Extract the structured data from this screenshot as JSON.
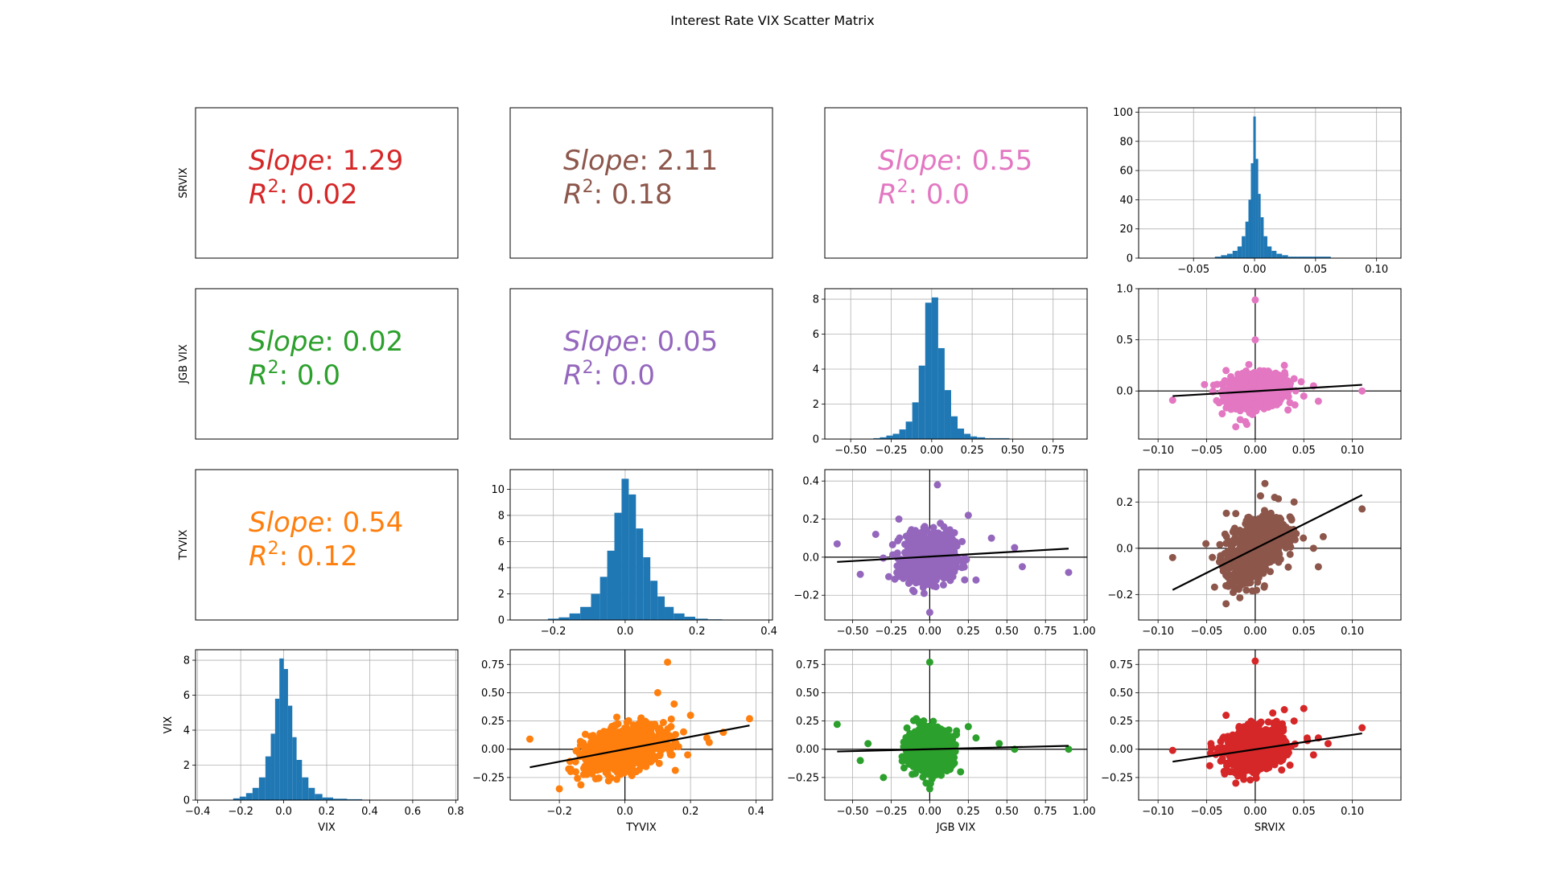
{
  "title": "Interest Rate VIX Scatter Matrix",
  "variables": [
    "VIX",
    "TYVIX",
    "JGB VIX",
    "SRVIX"
  ],
  "chart_data": [
    {
      "type": "table",
      "panel": "row0-col0",
      "slope_label": "Slope",
      "slope": "1.29",
      "r2_label": "R",
      "r2_sup": "2",
      "r2": "0.02",
      "color": "#d62728"
    },
    {
      "type": "table",
      "panel": "row0-col1",
      "slope_label": "Slope",
      "slope": "2.11",
      "r2_label": "R",
      "r2_sup": "2",
      "r2": "0.18",
      "color": "#8c564b"
    },
    {
      "type": "table",
      "panel": "row0-col2",
      "slope_label": "Slope",
      "slope": "0.55",
      "r2_label": "R",
      "r2_sup": "2",
      "r2": "0.0",
      "color": "#e377c2"
    },
    {
      "type": "table",
      "panel": "row1-col0",
      "slope_label": "Slope",
      "slope": "0.02",
      "r2_label": "R",
      "r2_sup": "2",
      "r2": "0.0",
      "color": "#2ca02c"
    },
    {
      "type": "table",
      "panel": "row1-col1",
      "slope_label": "Slope",
      "slope": "0.05",
      "r2_label": "R",
      "r2_sup": "2",
      "r2": "0.0",
      "color": "#9467bd"
    },
    {
      "type": "table",
      "panel": "row2-col0",
      "slope_label": "Slope",
      "slope": "0.54",
      "r2_label": "R",
      "r2_sup": "2",
      "r2": "0.12",
      "color": "#ff7f0e"
    },
    {
      "type": "bar",
      "panel": "row0-col3",
      "series_variable": "SRVIX",
      "color": "#1f77b4",
      "xlim": [
        -0.095,
        0.12
      ],
      "ylim": [
        0,
        103
      ],
      "xticks": [
        -0.05,
        0.0,
        0.05,
        0.1
      ],
      "xtick_labels": [
        "−0.05",
        "0.00",
        "0.05",
        "0.10"
      ],
      "yticks": [
        0,
        20,
        40,
        60,
        80,
        100
      ],
      "ytick_labels": [
        "0",
        "20",
        "40",
        "60",
        "80",
        "100"
      ],
      "bin_centers": [
        -0.03,
        -0.025,
        -0.02,
        -0.016,
        -0.012,
        -0.009,
        -0.006,
        -0.004,
        -0.002,
        0.0,
        0.002,
        0.004,
        0.006,
        0.009,
        0.012,
        0.016,
        0.02,
        0.025,
        0.03,
        0.04,
        0.055
      ],
      "values": [
        1,
        2,
        3,
        5,
        8,
        15,
        25,
        40,
        65,
        97,
        68,
        44,
        28,
        15,
        8,
        5,
        3,
        2,
        1,
        1,
        1
      ]
    },
    {
      "type": "bar",
      "panel": "row1-col2",
      "series_variable": "JGB VIX",
      "color": "#1f77b4",
      "xlim": [
        -0.66,
        0.96
      ],
      "ylim": [
        0,
        8.6
      ],
      "xticks": [
        -0.5,
        -0.25,
        0.0,
        0.25,
        0.5,
        0.75
      ],
      "xtick_labels": [
        "−0.50",
        "−0.25",
        "0.00",
        "0.25",
        "0.50",
        "0.75"
      ],
      "yticks": [
        0,
        2,
        4,
        6,
        8
      ],
      "ytick_labels": [
        "0",
        "2",
        "4",
        "6",
        "8"
      ],
      "bin_centers": [
        -0.34,
        -0.3,
        -0.26,
        -0.22,
        -0.18,
        -0.14,
        -0.1,
        -0.06,
        -0.02,
        0.02,
        0.06,
        0.1,
        0.14,
        0.18,
        0.22,
        0.26,
        0.3,
        0.36,
        0.44
      ],
      "values": [
        0.05,
        0.1,
        0.2,
        0.3,
        0.55,
        1.0,
        2.1,
        4.2,
        7.8,
        8.1,
        5.2,
        2.8,
        1.3,
        0.6,
        0.3,
        0.15,
        0.1,
        0.05,
        0.05
      ]
    },
    {
      "type": "bar",
      "panel": "row2-col1",
      "series_variable": "TYVIX",
      "color": "#1f77b4",
      "xlim": [
        -0.32,
        0.41
      ],
      "ylim": [
        0,
        11.5
      ],
      "xticks": [
        -0.2,
        0.0,
        0.2,
        0.4
      ],
      "xtick_labels": [
        "−0.2",
        "0.0",
        "0.2",
        "0.4"
      ],
      "yticks": [
        0,
        2,
        4,
        6,
        8,
        10
      ],
      "ytick_labels": [
        "0",
        "2",
        "4",
        "6",
        "8",
        "10"
      ],
      "bin_centers": [
        -0.2,
        -0.17,
        -0.14,
        -0.11,
        -0.08,
        -0.06,
        -0.04,
        -0.02,
        0.0,
        0.02,
        0.04,
        0.06,
        0.08,
        0.1,
        0.12,
        0.15,
        0.18,
        0.21,
        0.25
      ],
      "values": [
        0.1,
        0.2,
        0.5,
        1.0,
        2.0,
        3.3,
        5.3,
        8.2,
        10.8,
        9.6,
        7.0,
        4.8,
        3.0,
        1.8,
        1.0,
        0.5,
        0.25,
        0.1,
        0.05
      ]
    },
    {
      "type": "bar",
      "panel": "row3-col0",
      "series_variable": "VIX",
      "color": "#1f77b4",
      "xlim": [
        -0.41,
        0.81
      ],
      "ylim": [
        0,
        8.6
      ],
      "xticks": [
        -0.4,
        -0.2,
        0.0,
        0.2,
        0.4,
        0.6,
        0.8
      ],
      "xtick_labels": [
        "−0.4",
        "−0.2",
        "0.0",
        "0.2",
        "0.4",
        "0.6",
        "0.8"
      ],
      "yticks": [
        0,
        2,
        4,
        6,
        8
      ],
      "ytick_labels": [
        "0",
        "2",
        "4",
        "6",
        "8"
      ],
      "bin_centers": [
        -0.22,
        -0.19,
        -0.16,
        -0.13,
        -0.1,
        -0.07,
        -0.05,
        -0.03,
        -0.01,
        0.01,
        0.03,
        0.05,
        0.07,
        0.1,
        0.13,
        0.16,
        0.2,
        0.26,
        0.33
      ],
      "values": [
        0.1,
        0.2,
        0.4,
        0.7,
        1.3,
        2.5,
        3.8,
        5.8,
        8.1,
        7.5,
        5.4,
        3.6,
        2.3,
        1.3,
        0.7,
        0.35,
        0.15,
        0.08,
        0.05
      ]
    },
    {
      "type": "scatter",
      "panel": "row1-col3",
      "x_variable": "SRVIX",
      "y_variable": "JGB VIX",
      "color": "#e377c2",
      "xlim": [
        -0.12,
        0.15
      ],
      "ylim": [
        -0.47,
        1.0
      ],
      "xticks": [
        -0.1,
        -0.05,
        0.0,
        0.05,
        0.1
      ],
      "xtick_labels": [
        "−0.10",
        "−0.05",
        "0.00",
        "0.05",
        "0.10"
      ],
      "yticks": [
        0.0,
        0.5,
        1.0
      ],
      "ytick_labels": [
        "0.0",
        "0.5",
        "1.0"
      ],
      "cloud": {
        "center": [
          0.0,
          0.0
        ],
        "spread": [
          0.015,
          0.08
        ]
      },
      "outliers": [
        [
          0.0,
          0.89
        ],
        [
          0.11,
          0.0
        ],
        [
          -0.085,
          -0.09
        ],
        [
          0.05,
          -0.05
        ],
        [
          -0.02,
          -0.35
        ],
        [
          0.06,
          0.05
        ],
        [
          -0.03,
          0.2
        ],
        [
          0.03,
          0.25
        ],
        [
          0.065,
          -0.1
        ],
        [
          0.0,
          0.5
        ],
        [
          -0.01,
          -0.3
        ],
        [
          0.04,
          0.12
        ]
      ],
      "fit_line": [
        [
          -0.085,
          -0.05
        ],
        [
          0.11,
          0.06
        ]
      ]
    },
    {
      "type": "scatter",
      "panel": "row2-col2",
      "x_variable": "JGB VIX",
      "y_variable": "TYVIX",
      "color": "#9467bd",
      "xlim": [
        -0.68,
        1.02
      ],
      "ylim": [
        -0.33,
        0.46
      ],
      "xticks": [
        -0.5,
        -0.25,
        0.0,
        0.25,
        0.5,
        0.75,
        1.0
      ],
      "xtick_labels": [
        "−0.50",
        "−0.25",
        "0.00",
        "0.25",
        "0.50",
        "0.75",
        "1.00"
      ],
      "yticks": [
        -0.2,
        0.0,
        0.2,
        0.4
      ],
      "ytick_labels": [
        "−0.2",
        "0.0",
        "0.2",
        "0.4"
      ],
      "cloud": {
        "center": [
          0.0,
          0.0
        ],
        "spread": [
          0.08,
          0.06
        ]
      },
      "outliers": [
        [
          -0.6,
          0.07
        ],
        [
          0.9,
          -0.08
        ],
        [
          0.05,
          0.38
        ],
        [
          0.0,
          -0.29
        ],
        [
          -0.45,
          -0.09
        ],
        [
          0.4,
          0.1
        ],
        [
          0.55,
          0.05
        ],
        [
          -0.35,
          0.12
        ],
        [
          0.3,
          -0.12
        ],
        [
          -0.2,
          0.2
        ],
        [
          0.25,
          0.22
        ],
        [
          0.6,
          -0.05
        ]
      ],
      "fit_line": [
        [
          -0.6,
          -0.025
        ],
        [
          0.9,
          0.045
        ]
      ]
    },
    {
      "type": "scatter",
      "panel": "row2-col3",
      "x_variable": "SRVIX",
      "y_variable": "TYVIX",
      "color": "#8c564b",
      "xlim": [
        -0.12,
        0.15
      ],
      "ylim": [
        -0.31,
        0.34
      ],
      "xticks": [
        -0.1,
        -0.05,
        0.0,
        0.05,
        0.1
      ],
      "xtick_labels": [
        "−0.10",
        "−0.05",
        "0.00",
        "0.05",
        "0.10"
      ],
      "yticks": [
        -0.2,
        0.0,
        0.2
      ],
      "ytick_labels": [
        "−0.2",
        "0.0",
        "0.2"
      ],
      "cloud": {
        "center": [
          0.0,
          0.0
        ],
        "spread": [
          0.015,
          0.06
        ]
      },
      "outliers": [
        [
          0.11,
          0.17
        ],
        [
          -0.085,
          -0.04
        ],
        [
          0.06,
          0.0
        ],
        [
          0.065,
          -0.08
        ],
        [
          0.07,
          0.05
        ],
        [
          0.01,
          0.28
        ],
        [
          -0.03,
          -0.24
        ],
        [
          0.04,
          0.2
        ],
        [
          -0.02,
          0.15
        ],
        [
          0.02,
          0.22
        ]
      ],
      "fit_line": [
        [
          -0.085,
          -0.18
        ],
        [
          0.11,
          0.23
        ]
      ]
    },
    {
      "type": "scatter",
      "panel": "row3-col1",
      "x_variable": "TYVIX",
      "y_variable": "VIX",
      "color": "#ff7f0e",
      "xlim": [
        -0.35,
        0.45
      ],
      "ylim": [
        -0.45,
        0.88
      ],
      "xticks": [
        -0.2,
        0.0,
        0.2,
        0.4
      ],
      "xtick_labels": [
        "−0.2",
        "0.0",
        "0.2",
        "0.4"
      ],
      "yticks": [
        -0.25,
        0.0,
        0.25,
        0.5,
        0.75
      ],
      "ytick_labels": [
        "−0.25",
        "0.00",
        "0.25",
        "0.50",
        "0.75"
      ],
      "cloud": {
        "center": [
          0.0,
          0.0
        ],
        "spread": [
          0.06,
          0.09
        ]
      },
      "outliers": [
        [
          0.13,
          0.77
        ],
        [
          -0.29,
          0.09
        ],
        [
          0.38,
          0.27
        ],
        [
          -0.2,
          -0.35
        ],
        [
          0.25,
          0.1
        ],
        [
          0.2,
          0.3
        ],
        [
          -0.15,
          -0.2
        ],
        [
          0.3,
          0.15
        ],
        [
          0.1,
          0.5
        ],
        [
          -0.05,
          -0.28
        ],
        [
          0.15,
          0.4
        ]
      ],
      "fit_line": [
        [
          -0.29,
          -0.16
        ],
        [
          0.38,
          0.21
        ]
      ]
    },
    {
      "type": "scatter",
      "panel": "row3-col2",
      "x_variable": "JGB VIX",
      "y_variable": "VIX",
      "color": "#2ca02c",
      "xlim": [
        -0.68,
        1.02
      ],
      "ylim": [
        -0.45,
        0.88
      ],
      "xticks": [
        -0.5,
        -0.25,
        0.0,
        0.25,
        0.5,
        0.75,
        1.0
      ],
      "xtick_labels": [
        "−0.50",
        "−0.25",
        "0.00",
        "0.25",
        "0.50",
        "0.75",
        "1.00"
      ],
      "yticks": [
        -0.25,
        0.0,
        0.25,
        0.5,
        0.75
      ],
      "ytick_labels": [
        "−0.25",
        "0.00",
        "0.25",
        "0.50",
        "0.75"
      ],
      "cloud": {
        "center": [
          0.0,
          0.0
        ],
        "spread": [
          0.07,
          0.09
        ]
      },
      "outliers": [
        [
          0.0,
          0.77
        ],
        [
          -0.6,
          0.22
        ],
        [
          0.9,
          0.0
        ],
        [
          -0.45,
          -0.1
        ],
        [
          0.45,
          0.05
        ],
        [
          0.25,
          0.2
        ],
        [
          -0.3,
          -0.25
        ],
        [
          0.0,
          -0.35
        ],
        [
          0.55,
          0.0
        ],
        [
          -0.4,
          0.05
        ],
        [
          0.2,
          -0.2
        ],
        [
          0.3,
          0.1
        ]
      ],
      "fit_line": [
        [
          -0.6,
          -0.02
        ],
        [
          0.9,
          0.03
        ]
      ]
    },
    {
      "type": "scatter",
      "panel": "row3-col3",
      "x_variable": "SRVIX",
      "y_variable": "VIX",
      "color": "#d62728",
      "xlim": [
        -0.12,
        0.15
      ],
      "ylim": [
        -0.45,
        0.88
      ],
      "xticks": [
        -0.1,
        -0.05,
        0.0,
        0.05,
        0.1
      ],
      "xtick_labels": [
        "−0.10",
        "−0.05",
        "0.00",
        "0.05",
        "0.10"
      ],
      "yticks": [
        -0.25,
        0.0,
        0.25,
        0.5,
        0.75
      ],
      "ytick_labels": [
        "−0.25",
        "0.00",
        "0.25",
        "0.50",
        "0.75"
      ],
      "cloud": {
        "center": [
          0.0,
          0.0
        ],
        "spread": [
          0.015,
          0.09
        ]
      },
      "outliers": [
        [
          0.0,
          0.78
        ],
        [
          -0.085,
          -0.01
        ],
        [
          0.11,
          0.19
        ],
        [
          0.05,
          0.36
        ],
        [
          0.06,
          -0.05
        ],
        [
          0.04,
          0.25
        ],
        [
          0.065,
          0.1
        ],
        [
          -0.02,
          -0.3
        ],
        [
          0.03,
          0.35
        ],
        [
          0.075,
          0.05
        ],
        [
          -0.03,
          0.3
        ]
      ],
      "fit_line": [
        [
          -0.085,
          -0.11
        ],
        [
          0.11,
          0.14
        ]
      ]
    }
  ]
}
